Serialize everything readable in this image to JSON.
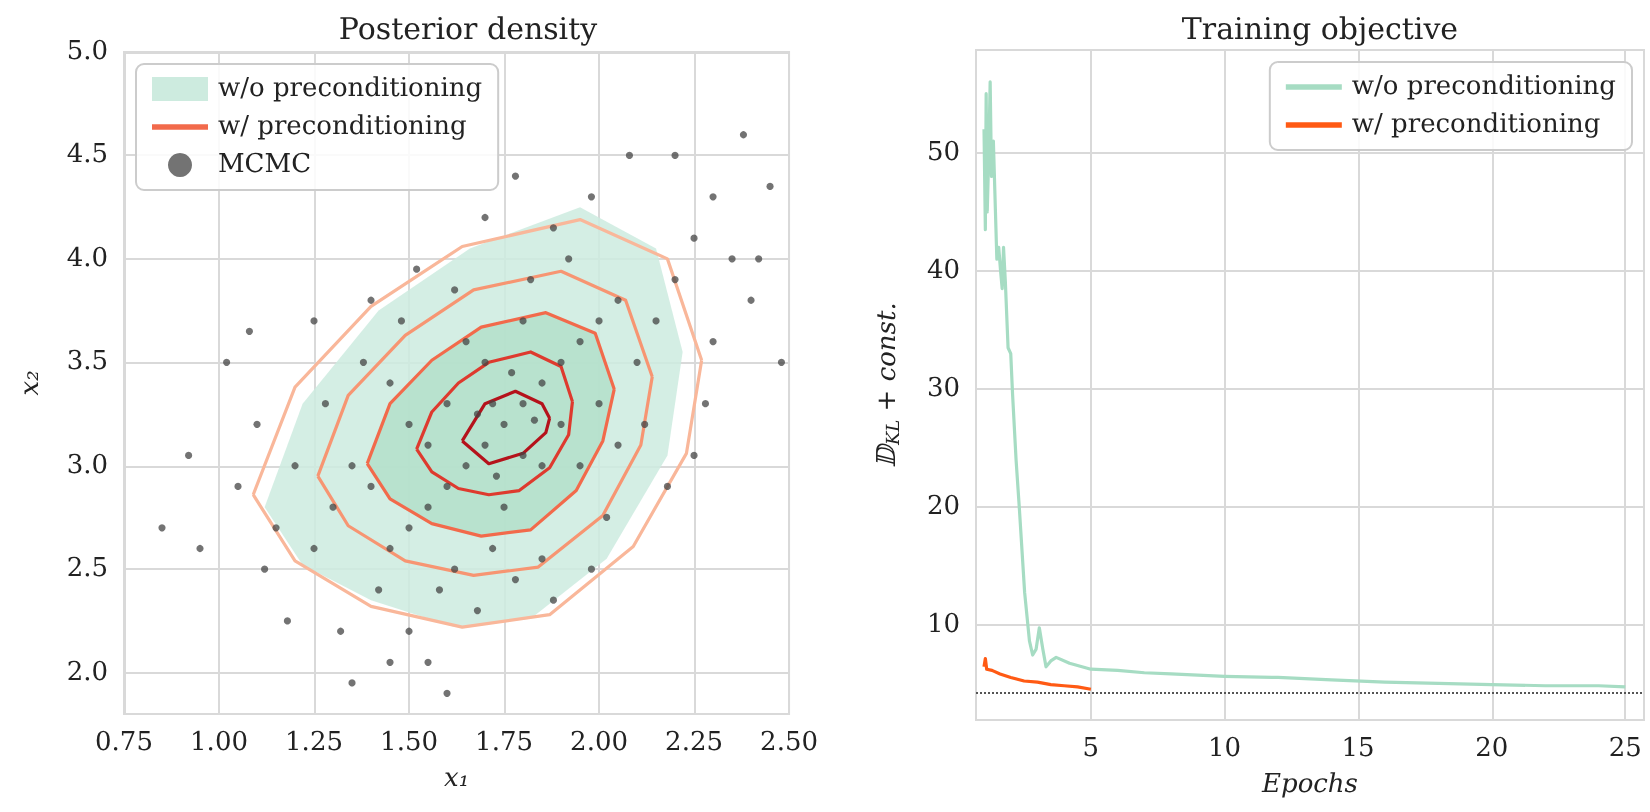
{
  "chart_data": [
    {
      "type": "scatter",
      "title": "Posterior density",
      "xlabel": "x₁",
      "ylabel": "x₂",
      "xlim": [
        0.75,
        2.5
      ],
      "ylim": [
        1.8,
        5.0
      ],
      "xticks": [
        {
          "value": 0.75,
          "label": "0.75"
        },
        {
          "value": 1,
          "label": "1.00"
        },
        {
          "value": 1.25,
          "label": "1.25"
        },
        {
          "value": 1.5,
          "label": "1.50"
        },
        {
          "value": 1.75,
          "label": "1.75"
        },
        {
          "value": 2,
          "label": "2.00"
        },
        {
          "value": 2.25,
          "label": "2.25"
        },
        {
          "value": 2.5,
          "label": "2.50"
        }
      ],
      "yticks": [
        {
          "value": 2,
          "label": "2.0"
        },
        {
          "value": 2.5,
          "label": "2.5"
        },
        {
          "value": 3,
          "label": "3.0"
        },
        {
          "value": 3.5,
          "label": "3.5"
        },
        {
          "value": 4,
          "label": "4.0"
        },
        {
          "value": 4.5,
          "label": "4.5"
        },
        {
          "value": 5,
          "label": "5.0"
        }
      ],
      "grid": true,
      "legend": "top left",
      "marker": "none",
      "series": [
        {
          "type": "area",
          "name": "w/o preconditioning",
          "color": "#cdebdf",
          "x": [
            1.12,
            1.22,
            1.42,
            1.66,
            1.95,
            2.15,
            2.22,
            2.18,
            2.02,
            1.82,
            1.62,
            1.4,
            1.22
          ],
          "values": [
            2.8,
            3.3,
            3.75,
            4.05,
            4.25,
            4.05,
            3.55,
            3.05,
            2.55,
            2.26,
            2.22,
            2.35,
            2.52
          ]
        },
        {
          "type": "area",
          "color": "#b3dfca",
          "x": [
            1.39,
            1.45,
            1.56,
            1.69,
            1.86,
            1.99,
            2.04,
            2.01,
            1.94,
            1.82,
            1.69,
            1.56,
            1.45
          ],
          "values": [
            3.01,
            3.3,
            3.51,
            3.67,
            3.74,
            3.64,
            3.37,
            3.12,
            2.88,
            2.69,
            2.66,
            2.72,
            2.84
          ]
        },
        {
          "type": "line",
          "name": "w/ preconditioning",
          "color": "#f26a4b",
          "x": [
            1.39,
            1.45,
            1.56,
            1.69,
            1.86,
            1.99,
            2.04,
            null,
            1.39,
            1.45,
            1.56,
            1.69,
            1.82,
            1.94,
            2.01,
            2.04
          ],
          "values": [
            3.01,
            3.3,
            3.51,
            3.67,
            3.74,
            3.64,
            3.37,
            null,
            3.01,
            2.84,
            2.72,
            2.66,
            2.69,
            2.88,
            3.12,
            3.37
          ]
        },
        {
          "type": "line",
          "color": "#f9b79a",
          "x": [
            1.09,
            1.2,
            1.4,
            1.64,
            1.95,
            2.18,
            2.27,
            null,
            1.09,
            1.2,
            1.4,
            1.64,
            1.87,
            2.09,
            2.23,
            2.27
          ],
          "values": [
            2.86,
            3.38,
            3.77,
            4.06,
            4.19,
            4.0,
            3.51,
            null,
            2.86,
            2.54,
            2.32,
            2.22,
            2.28,
            2.61,
            3.06,
            3.51
          ]
        },
        {
          "type": "line",
          "color": "#f79572",
          "x": [
            1.26,
            1.34,
            1.49,
            1.67,
            1.9,
            2.07,
            2.14,
            null,
            1.26,
            1.34,
            1.49,
            1.67,
            1.84,
            2.01,
            2.11,
            2.14
          ],
          "values": [
            2.95,
            3.34,
            3.63,
            3.85,
            3.94,
            3.8,
            3.43,
            null,
            2.95,
            2.71,
            2.54,
            2.47,
            2.51,
            2.76,
            3.1,
            3.43
          ]
        },
        {
          "type": "line",
          "color": "#de3a2e",
          "x": [
            1.52,
            1.56,
            1.63,
            1.71,
            1.82,
            1.9,
            1.93,
            null,
            1.52,
            1.56,
            1.63,
            1.71,
            1.79,
            1.87,
            1.92,
            1.93
          ],
          "values": [
            3.08,
            3.26,
            3.4,
            3.5,
            3.55,
            3.48,
            3.31,
            null,
            3.08,
            2.97,
            2.89,
            2.86,
            2.88,
            2.99,
            3.15,
            3.31
          ]
        },
        {
          "type": "line",
          "color": "#b5121b",
          "x": [
            1.64,
            1.7,
            1.78,
            1.85,
            1.87,
            null,
            1.64,
            1.71,
            1.8,
            1.86,
            1.87
          ],
          "values": [
            3.12,
            3.3,
            3.36,
            3.3,
            3.23,
            null,
            3.12,
            3.01,
            3.06,
            3.16,
            3.23
          ]
        },
        {
          "name": "MCMC",
          "color": "#444444",
          "marker": "circle",
          "x": [
            1.75,
            1.8,
            1.7,
            1.85,
            1.65,
            1.9,
            1.6,
            1.95,
            1.55,
            2.0,
            1.5,
            2.05,
            1.45,
            1.7,
            1.85,
            1.6,
            1.9,
            1.75,
            1.8,
            1.65,
            1.95,
            1.55,
            2.0,
            1.5,
            1.72,
            1.82,
            1.4,
            2.1,
            1.35,
            2.15,
            1.62,
            1.92,
            1.45,
            2.05,
            1.3,
            2.2,
            1.58,
            1.88,
            1.38,
            2.12,
            1.25,
            2.25,
            1.68,
            1.98,
            1.28,
            2.18,
            1.2,
            2.3,
            1.5,
            1.78,
            1.15,
            2.35,
            1.42,
            2.08,
            1.1,
            2.28,
            1.32,
            1.7,
            1.05,
            2.4,
            0.95,
            2.48,
            1.55,
            2.38,
            0.92,
            1.35,
            2.45,
            1.02,
            1.6,
            2.2,
            1.12,
            1.85,
            1.48,
            2.02,
            1.25,
            2.3,
            1.78,
            1.62,
            1.88,
            1.52,
            1.98,
            1.4,
            0.85,
            1.18,
            2.42,
            1.08,
            1.45,
            2.25,
            1.72,
            1.8,
            1.68,
            1.83,
            1.77,
            1.73
          ],
          "values": [
            3.2,
            3.3,
            3.1,
            3.4,
            3.0,
            3.5,
            2.9,
            3.6,
            2.8,
            3.7,
            2.7,
            3.8,
            2.6,
            3.5,
            3.0,
            3.3,
            3.2,
            2.8,
            3.7,
            3.6,
            3.0,
            3.1,
            3.3,
            3.2,
            2.6,
            3.9,
            2.9,
            3.5,
            3.0,
            3.7,
            2.5,
            4.0,
            3.4,
            3.1,
            2.8,
            3.9,
            2.4,
            4.15,
            3.5,
            3.2,
            2.6,
            4.1,
            2.3,
            4.3,
            3.3,
            2.9,
            3.0,
            3.6,
            2.2,
            4.4,
            2.7,
            4.0,
            2.4,
            4.5,
            3.2,
            3.3,
            2.2,
            4.2,
            2.9,
            3.8,
            2.6,
            3.5,
            2.05,
            4.6,
            3.05,
            1.95,
            4.35,
            3.5,
            1.9,
            4.5,
            2.5,
            2.55,
            3.7,
            2.75,
            3.7,
            4.3,
            2.45,
            3.85,
            2.35,
            3.95,
            2.5,
            3.8,
            2.7,
            2.25,
            4.0,
            3.65,
            2.05,
            3.05,
            3.3,
            3.05,
            3.25,
            3.22,
            3.45,
            2.95
          ]
        }
      ]
    },
    {
      "type": "line",
      "title": "Training objective",
      "xlabel": "Epochs",
      "ylabel": "𝔻$_{KL}$ + const.",
      "xlim": [
        0.7,
        25.7
      ],
      "ylim": [
        2,
        58.7
      ],
      "xticks": [
        5,
        10,
        15,
        20,
        25
      ],
      "yticks": [
        10,
        20,
        30,
        40,
        50
      ],
      "grid": true,
      "legend": "top right",
      "marker": "none",
      "ref_lines": [
        {
          "axis": "y",
          "value": 4.3,
          "color": "#555555",
          "line_style": "dotted"
        }
      ],
      "series": [
        {
          "name": "w/o preconditioning",
          "color": "#a6dcc3",
          "x": [
            1.0,
            1.05,
            1.08,
            1.12,
            1.18,
            1.23,
            1.28,
            1.35,
            1.48,
            1.55,
            1.62,
            1.68,
            1.73,
            1.8,
            1.9,
            2.0,
            2.07,
            2.2,
            2.32,
            2.52,
            2.7,
            2.82,
            2.95,
            3.07,
            3.2,
            3.32,
            3.5,
            3.7,
            4.2,
            5,
            6,
            7,
            8,
            9,
            10,
            12,
            14,
            16,
            18,
            20,
            22,
            24,
            25
          ],
          "values": [
            52,
            43.5,
            55,
            45,
            50,
            56,
            48,
            51,
            41,
            42,
            40,
            38.5,
            42,
            39,
            33.5,
            33,
            29.5,
            24,
            20,
            12.8,
            8.7,
            7.5,
            8,
            9.8,
            8,
            6.5,
            7,
            7.3,
            6.8,
            6.3,
            6.2,
            6,
            5.9,
            5.8,
            5.7,
            5.6,
            5.4,
            5.2,
            5.1,
            5.0,
            4.9,
            4.9,
            4.8
          ]
        },
        {
          "name": "w/ preconditioning",
          "color": "#ff5a14",
          "x": [
            1.0,
            1.05,
            1.1,
            1.3,
            1.6,
            2,
            2.5,
            3,
            3.5,
            4,
            4.5,
            5
          ],
          "values": [
            6.5,
            7.2,
            6.3,
            6.2,
            5.9,
            5.6,
            5.3,
            5.2,
            5.0,
            4.9,
            4.8,
            4.6
          ]
        }
      ]
    }
  ]
}
